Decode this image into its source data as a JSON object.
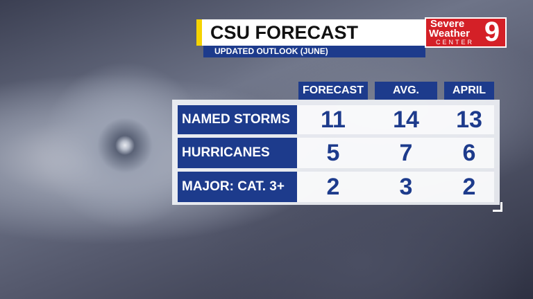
{
  "header": {
    "title": "CSU FORECAST",
    "subtitle": "UPDATED OUTLOOK (JUNE)"
  },
  "logo": {
    "line1": "Severe",
    "line2": "Weather",
    "line3": "CENTER",
    "channel": "9"
  },
  "table": {
    "columns": [
      "FORECAST",
      "AVG.",
      "APRIL"
    ],
    "rows": [
      [
        "NAMED STORMS",
        11,
        14,
        13
      ],
      [
        "HURRICANES",
        5,
        7,
        6
      ],
      [
        "MAJOR: CAT. 3+",
        2,
        3,
        2
      ]
    ]
  }
}
